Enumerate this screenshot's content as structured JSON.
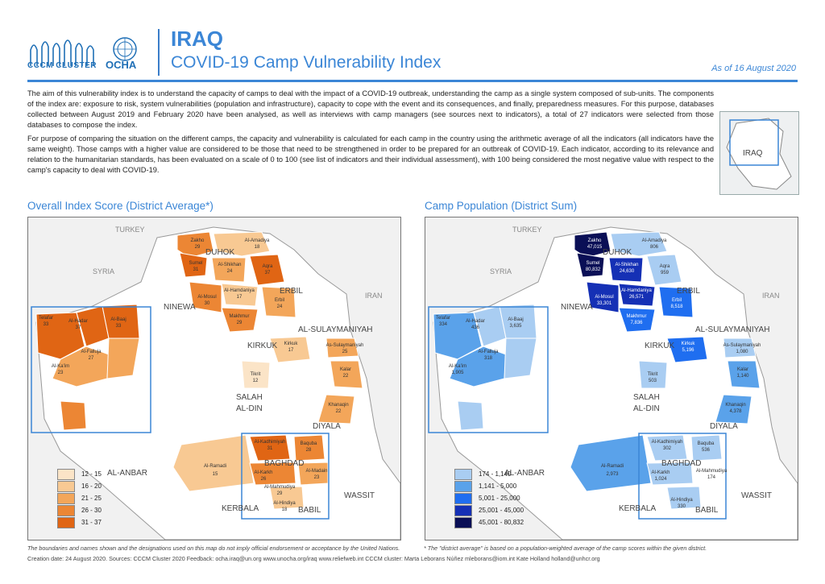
{
  "header": {
    "logo_cccm": "CCCM CLUSTER",
    "logo_ocha": "OCHA",
    "country": "IRAQ",
    "title": "COVID-19 Camp Vulnerability Index",
    "as_of": "As of 16 August 2020"
  },
  "intro": {
    "p1": "The aim of this vulnerability index is to understand the capacity of camps to deal with the impact of a COVID-19 outbreak, understanding the camp as a single system composed of sub-units. The components of the index are: exposure to risk, system vulnerabilities (population and infrastructure), capacity to cope with the event and its consequences, and finally, preparedness measures. For this purpose, databases collected between August 2019 and February 2020 have been analysed, as well as interviews with camp managers (see sources next to indicators), a total of 27 indicators were selected from those databases to compose the index.",
    "p2": "For purpose of comparing the situation on the different camps, the capacity and vulnerability is calculated for each camp in the country using the arithmetic average of all the indicators (all indicators have the same weight). Those camps with a higher value are considered to be those that need to be strengthened in order to be prepared for an outbreak of COVID-19. Each indicator, according to its relevance and relation to the humanitarian standards, has been evaluated on a scale of 0 to 100 (see list of indicators and their individual assessment), with 100 being considered the most negative value with respect to the camp's capacity to deal with COVID-19."
  },
  "inset": {
    "label": "IRAQ"
  },
  "map_left": {
    "title": "Overall Index Score (District Average*)",
    "countries": [
      "TURKEY",
      "SYRIA",
      "IRAN"
    ],
    "governorates": [
      "DUHOK",
      "ERBIL",
      "NINEWA",
      "KIRKUK",
      "AL-SULAYMANIYAH",
      "SALAH",
      "AL-DIN",
      "DIYALA",
      "AL-ANBAR",
      "BAGHDAD",
      "WASSIT",
      "KERBALA",
      "BABIL"
    ],
    "districts": [
      {
        "name": "Zakho",
        "value": "29"
      },
      {
        "name": "Al-Amadiya",
        "value": "18"
      },
      {
        "name": "Sumel",
        "value": "31"
      },
      {
        "name": "Al-Shikhan",
        "value": "24"
      },
      {
        "name": "Aqra",
        "value": "37"
      },
      {
        "name": "Al-Hamdaniya",
        "value": "17"
      },
      {
        "name": "Al-Mosul",
        "value": "30"
      },
      {
        "name": "Erbil",
        "value": "24"
      },
      {
        "name": "Makhmur",
        "value": "29"
      },
      {
        "name": "Al-Baaj",
        "value": "33"
      },
      {
        "name": "Al-Hadar",
        "value": "37"
      },
      {
        "name": "Telafar",
        "value": "33"
      },
      {
        "name": "Al-Falluja",
        "value": "27"
      },
      {
        "name": "Al-Ka'im",
        "value": "23"
      },
      {
        "name": "Kirkuk",
        "value": "17"
      },
      {
        "name": "As-Sulaymaniyah",
        "value": "25"
      },
      {
        "name": "Kalar",
        "value": "22"
      },
      {
        "name": "Tikrit",
        "value": "12"
      },
      {
        "name": "Khanaqin",
        "value": "22"
      },
      {
        "name": "Al-Ramadi",
        "value": "15"
      },
      {
        "name": "Al-Kadhimiyah",
        "value": "31"
      },
      {
        "name": "Baquba",
        "value": "28"
      },
      {
        "name": "Al-Karkh",
        "value": "26"
      },
      {
        "name": "Al-Madain",
        "value": "23"
      },
      {
        "name": "Al-Mahmudiya",
        "value": "29"
      },
      {
        "name": "Al-Hindiya",
        "value": "18"
      }
    ],
    "legend": [
      {
        "label": "12 - 15",
        "color": "#fbe4c7"
      },
      {
        "label": "16 - 20",
        "color": "#f8c993"
      },
      {
        "label": "21 - 25",
        "color": "#f3a65a"
      },
      {
        "label": "26 - 30",
        "color": "#ec8634"
      },
      {
        "label": "31 - 37",
        "color": "#e06514"
      }
    ]
  },
  "map_right": {
    "title": "Camp Population (District Sum)",
    "countries": [
      "TURKEY",
      "SYRIA",
      "IRAN"
    ],
    "governorates": [
      "DUHOK",
      "ERBIL",
      "NINEWA",
      "KIRKUK",
      "AL-SULAYMANIYAH",
      "SALAH",
      "AL-DIN",
      "DIYALA",
      "AL-ANBAR",
      "BAGHDAD",
      "WASSIT",
      "KERBALA",
      "BABIL"
    ],
    "districts": [
      {
        "name": "Zakho",
        "value": "47,015"
      },
      {
        "name": "Al-Amadiya",
        "value": "806"
      },
      {
        "name": "Sumel",
        "value": "80,832"
      },
      {
        "name": "Al-Shikhan",
        "value": "24,630"
      },
      {
        "name": "Aqra",
        "value": "959"
      },
      {
        "name": "Al-Hamdaniya",
        "value": "26,571"
      },
      {
        "name": "Al-Mosul",
        "value": "33,301"
      },
      {
        "name": "Erbil",
        "value": "8,518"
      },
      {
        "name": "Makhmur",
        "value": "7,836"
      },
      {
        "name": "Al-Baaj",
        "value": "3,635"
      },
      {
        "name": "Al-Hadar",
        "value": "436"
      },
      {
        "name": "Telafar",
        "value": "334"
      },
      {
        "name": "Al-Falluja",
        "value": "318"
      },
      {
        "name": "Al-Ka'im",
        "value": "1,905"
      },
      {
        "name": "Kirkuk",
        "value": "5,196"
      },
      {
        "name": "As-Sulaymaniyah",
        "value": "1,080"
      },
      {
        "name": "Kalar",
        "value": "1,140"
      },
      {
        "name": "Tikrit",
        "value": "503"
      },
      {
        "name": "Khanaqin",
        "value": "4,378"
      },
      {
        "name": "Al-Ramadi",
        "value": "2,973"
      },
      {
        "name": "Al-Kadhimiyah",
        "value": "302"
      },
      {
        "name": "Baquba",
        "value": "536"
      },
      {
        "name": "Al-Karkh",
        "value": "1,024"
      },
      {
        "name": "Al-Mahmudiya",
        "value": "174"
      },
      {
        "name": "Al-Hindiya",
        "value": "330"
      }
    ],
    "legend": [
      {
        "label": "174 - 1,140",
        "color": "#a9cdf2"
      },
      {
        "label": "1,141 - 5,000",
        "color": "#5aa2ea"
      },
      {
        "label": "5,001 - 25,000",
        "color": "#1f6ef0"
      },
      {
        "label": "25,001 - 45,000",
        "color": "#1530b5"
      },
      {
        "label": "45,001 - 80,832",
        "color": "#0a0f56"
      }
    ]
  },
  "footer": {
    "disclaimer": "The boundaries and names shown and the designations used on this map do not imply official endorsement or acceptance by the United Nations.",
    "footnote": "* The \"district average\" is based on a population-weighted average of the camp scores within the given district.",
    "creation": "Creation date: 24 August 2020.  Sources: CCCM Cluster 2020  Feedback: ocha.iraq@un.org   www.unocha.org/iraq   www.reliefweb.int   CCCM cluster: Marta Leborans Núñez mleborans@iom.int  Kate Holland holland@unhcr.org"
  }
}
